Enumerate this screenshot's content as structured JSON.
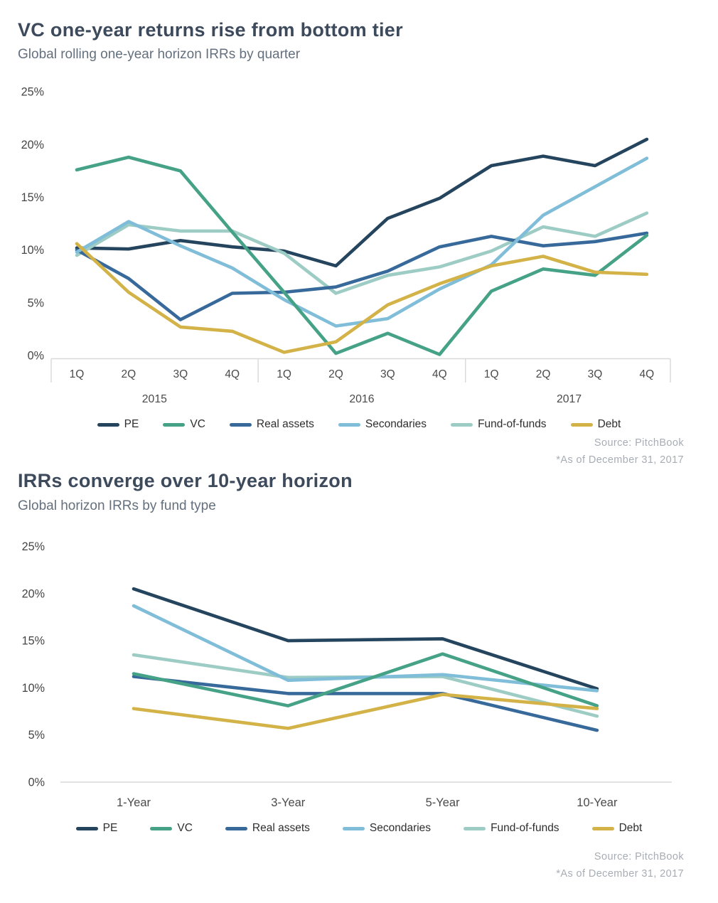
{
  "chart_data": [
    {
      "type": "line",
      "title": "VC one-year returns rise from bottom tier",
      "subtitle": "Global rolling one-year horizon IRRs by quarter",
      "source": "Source: PitchBook",
      "as_of": "*As of December 31, 2017",
      "categories": [
        "1Q",
        "2Q",
        "3Q",
        "4Q",
        "1Q",
        "2Q",
        "3Q",
        "4Q",
        "1Q",
        "2Q",
        "3Q",
        "4Q"
      ],
      "year_groups": [
        "2015",
        "2016",
        "2017"
      ],
      "ylim": [
        0,
        25
      ],
      "yticks": [
        0,
        5,
        10,
        15,
        20,
        25
      ],
      "ytick_suffix": "%",
      "grid": false,
      "legend_position": "bottom",
      "axis_line_color": "#d9d9d9",
      "series": [
        {
          "name": "PE",
          "color": "#25455e",
          "values": [
            10.2,
            10.1,
            10.9,
            10.3,
            9.9,
            8.5,
            13.0,
            14.9,
            18.0,
            18.9,
            18.0,
            20.5
          ]
        },
        {
          "name": "VC",
          "color": "#46a287",
          "values": [
            17.6,
            18.8,
            17.5,
            11.7,
            6.0,
            0.2,
            2.1,
            0.1,
            6.1,
            8.2,
            7.6,
            11.4
          ]
        },
        {
          "name": "Real assets",
          "color": "#37699a",
          "values": [
            10.0,
            7.3,
            3.4,
            5.9,
            6.0,
            6.5,
            8.0,
            10.3,
            11.3,
            10.4,
            10.8,
            11.6
          ]
        },
        {
          "name": "Secondaries",
          "color": "#7fbdd9",
          "values": [
            9.8,
            12.7,
            10.4,
            8.3,
            5.3,
            2.8,
            3.5,
            6.3,
            8.6,
            13.3,
            16.0,
            18.7
          ]
        },
        {
          "name": "Fund-of-funds",
          "color": "#9dccc4",
          "values": [
            9.5,
            12.4,
            11.8,
            11.8,
            9.7,
            5.9,
            7.6,
            8.4,
            9.9,
            12.2,
            11.3,
            13.5
          ]
        },
        {
          "name": "Debt",
          "color": "#d3b248",
          "values": [
            10.6,
            6.0,
            2.7,
            2.3,
            0.3,
            1.3,
            4.8,
            6.8,
            8.5,
            9.4,
            7.9,
            7.7
          ]
        }
      ]
    },
    {
      "type": "line",
      "title": "IRRs converge over 10-year horizon",
      "subtitle": "Global horizon IRRs by fund type",
      "source": "Source: PitchBook",
      "as_of": "*As of December 31, 2017",
      "categories": [
        "1-Year",
        "3-Year",
        "5-Year",
        "10-Year"
      ],
      "ylim": [
        0,
        25
      ],
      "yticks": [
        0,
        5,
        10,
        15,
        20,
        25
      ],
      "ytick_suffix": "%",
      "grid": false,
      "legend_position": "bottom",
      "axis_line_color": "#d9d9d9",
      "series": [
        {
          "name": "PE",
          "color": "#25455e",
          "values": [
            20.5,
            15.0,
            15.2,
            9.9
          ]
        },
        {
          "name": "VC",
          "color": "#46a287",
          "values": [
            11.5,
            8.1,
            13.6,
            8.1
          ]
        },
        {
          "name": "Real assets",
          "color": "#37699a",
          "values": [
            11.2,
            9.4,
            9.4,
            5.5
          ]
        },
        {
          "name": "Secondaries",
          "color": "#7fbdd9",
          "values": [
            18.7,
            10.8,
            11.4,
            9.7
          ]
        },
        {
          "name": "Fund-of-funds",
          "color": "#9dccc4",
          "values": [
            13.5,
            11.1,
            11.2,
            7.0
          ]
        },
        {
          "name": "Debt",
          "color": "#d3b248",
          "values": [
            7.8,
            5.7,
            9.3,
            7.8
          ]
        }
      ]
    }
  ]
}
